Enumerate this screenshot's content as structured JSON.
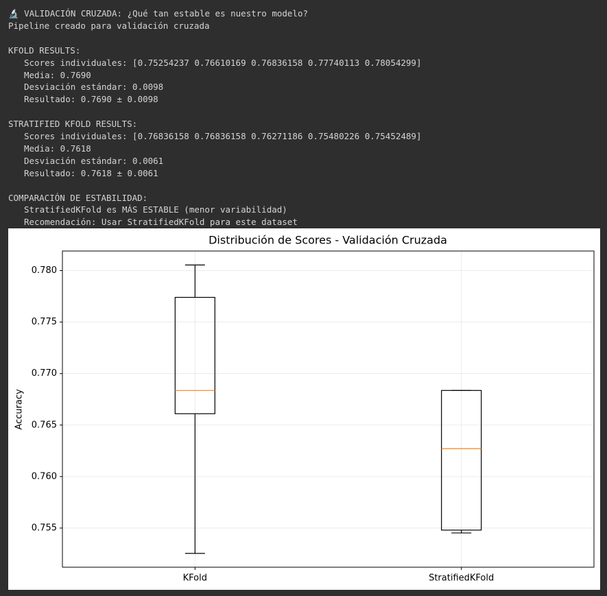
{
  "header": [
    "🔬 VALIDACIÓN CRUZADA: ¿Qué tan estable es nuestro modelo?",
    "Pipeline creado para validación cruzada"
  ],
  "sections": [
    {
      "title": "KFOLD RESULTS:",
      "lines": [
        "Scores individuales: [0.75254237 0.76610169 0.76836158 0.77740113 0.78054299]",
        "Media: 0.7690",
        "Desviación estándar: 0.0098",
        "Resultado: 0.7690 ± 0.0098"
      ]
    },
    {
      "title": "STRATIFIED KFOLD RESULTS:",
      "lines": [
        "Scores individuales: [0.76836158 0.76836158 0.76271186 0.75480226 0.75452489]",
        "Media: 0.7618",
        "Desviación estándar: 0.0061",
        "Resultado: 0.7618 ± 0.0061"
      ]
    },
    {
      "title": "COMPARACIÓN DE ESTABILIDAD:",
      "lines": [
        "StratifiedKFold es MÁS ESTABLE (menor variabilidad)",
        "Recomendación: Usar StratifiedKFold para este dataset"
      ]
    }
  ],
  "chart_data": {
    "type": "box",
    "title": "Distribución de Scores - Validación Cruzada",
    "ylabel": "Accuracy",
    "categories": [
      "KFold",
      "StratifiedKFold"
    ],
    "boxes": [
      {
        "min": 0.75254237,
        "q1": 0.76610169,
        "median": 0.76836158,
        "q3": 0.77740113,
        "max": 0.78054299
      },
      {
        "min": 0.75452489,
        "q1": 0.75480226,
        "median": 0.76271186,
        "q3": 0.76836158,
        "max": 0.76836158
      }
    ],
    "box_color": "#000000",
    "median_color": "#ff7f0e",
    "ylim": [
      0.7512,
      0.7819
    ],
    "yticks": [
      0.755,
      {
        "value": 0.76,
        "label": "0.760"
      },
      0.765,
      {
        "value": 0.77,
        "label": "0.770"
      },
      0.775,
      {
        "value": 0.78,
        "label": "0.780"
      }
    ],
    "grid": true
  }
}
